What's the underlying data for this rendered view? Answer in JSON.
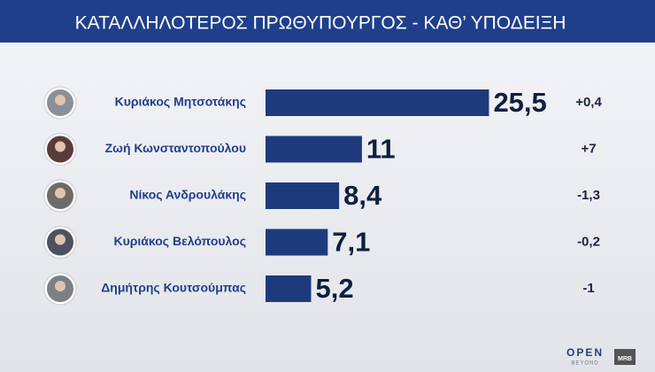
{
  "chart_data": {
    "type": "bar",
    "orientation": "horizontal",
    "title": "ΚΑΤΑΛΛΗΛΟΤΕΡΟΣ  ΠΡΩΘΥΠΟΥΡΓΟΣ - ΚΑΘ’ ΥΠΟΔΕΙΞΗ",
    "categories": [
      "Κυριάκος Μητσοτάκης",
      "Ζωή Κωνσταντοπούλου",
      "Νίκος Ανδρουλάκης",
      "Κυριάκος Βελόπουλος",
      "Δημήτρης Κουτσούμπας"
    ],
    "values": [
      25.5,
      11,
      8.4,
      7.1,
      5.2
    ],
    "value_labels": [
      "25,5",
      "11",
      "8,4",
      "7,1",
      "5,2"
    ],
    "color": "#1d3b7c",
    "changes": {
      "values": [
        0.4,
        7,
        -1.3,
        -0.2,
        -1
      ],
      "value_labels": [
        "+0,4",
        "+7",
        "-1,3",
        "-0,2",
        "-1"
      ]
    }
  },
  "branding": {
    "logo": "OPEN",
    "logo_sub": "BEYOND",
    "pollster": "MRB"
  }
}
